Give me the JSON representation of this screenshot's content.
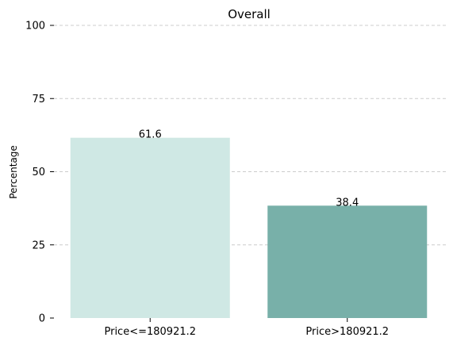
{
  "chart_data": {
    "type": "bar",
    "title": "Overall",
    "xlabel": "",
    "ylabel": "Percentage",
    "categories": [
      "Price<=180921.2",
      "Price>180921.2"
    ],
    "values": [
      61.6,
      38.4
    ],
    "value_labels": [
      "61.6",
      "38.4"
    ],
    "colors": [
      "#cfe8e4",
      "#78b0a9"
    ],
    "ylim": [
      0,
      100
    ],
    "yticks": [
      0,
      25,
      50,
      75,
      100
    ],
    "ytick_labels": [
      "0",
      "25",
      "50",
      "75",
      "100"
    ],
    "grid": "y-dashed",
    "grid_color": "#cccccc",
    "legend": "none"
  }
}
